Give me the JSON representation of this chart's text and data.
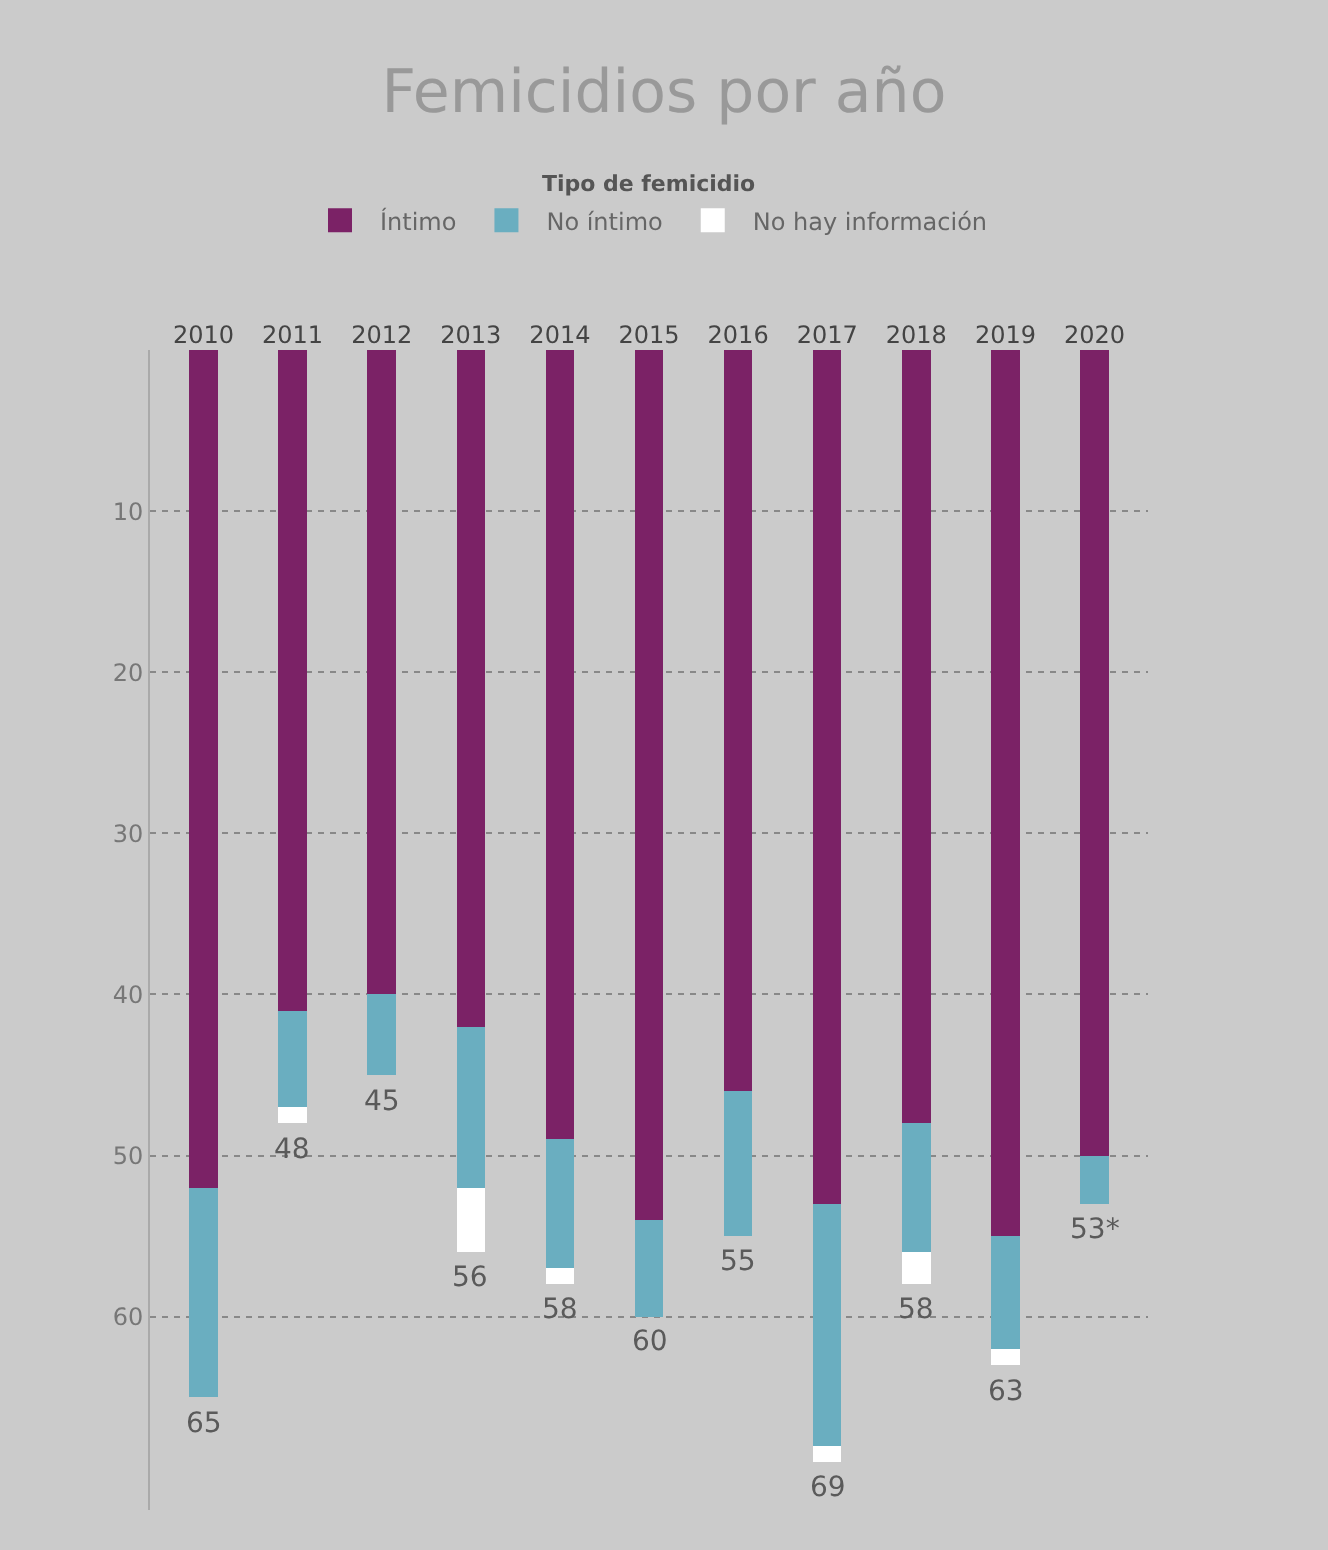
{
  "chart_data": {
    "type": "bar",
    "stacked": true,
    "title": "Femicidios por año",
    "legend_title": "Tipo de femicidio",
    "categories": [
      "2010",
      "2011",
      "2012",
      "2013",
      "2014",
      "2015",
      "2016",
      "2017",
      "2018",
      "2019",
      "2020"
    ],
    "series": [
      {
        "name": "Íntimo",
        "color": "#7b2266",
        "values": [
          52,
          41,
          40,
          42,
          49,
          54,
          46,
          53,
          48,
          55,
          50
        ]
      },
      {
        "name": "No íntimo",
        "color": "#6aaec0",
        "values": [
          13,
          6,
          5,
          10,
          8,
          6,
          9,
          15,
          8,
          7,
          3
        ]
      },
      {
        "name": "No hay información",
        "color": "#ffffff",
        "values": [
          0,
          1,
          0,
          4,
          1,
          0,
          0,
          1,
          2,
          1,
          0
        ]
      }
    ],
    "totals": [
      "65",
      "48",
      "45",
      "56",
      "58",
      "60",
      "55",
      "69",
      "58",
      "63",
      "53*"
    ],
    "ylim": [
      72,
      0
    ],
    "yticks": [
      10,
      20,
      30,
      40,
      50,
      60
    ],
    "grid": "y",
    "legend": "top"
  }
}
